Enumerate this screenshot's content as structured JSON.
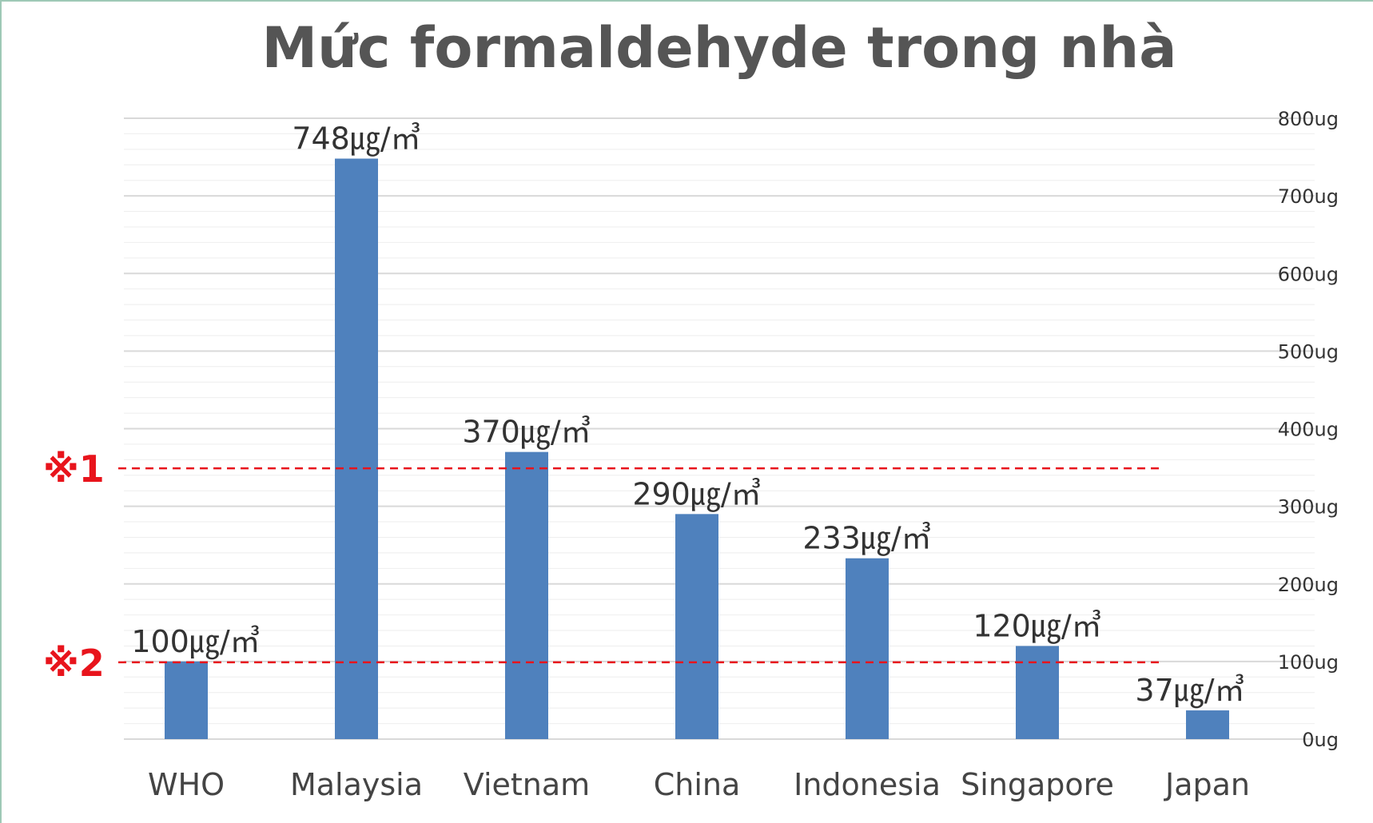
{
  "colors": {
    "bar": "#4f81bd",
    "reference": "#e8141c",
    "grid_major": "#d9d9d9",
    "grid_minor": "#eeeeee",
    "title": "#555555",
    "frame": "#9ec9b6"
  },
  "chart_data": {
    "type": "bar",
    "title": "Mức formaldehyde trong nhà",
    "categories": [
      "WHO",
      "Malaysia",
      "Vietnam",
      "China",
      "Indonesia",
      "Singapore",
      "Japan"
    ],
    "values": [
      100,
      748,
      370,
      290,
      233,
      120,
      37
    ],
    "data_labels": [
      "100㎍/㎥",
      "748㎍/㎥",
      "370㎍/㎥",
      "290㎍/㎥",
      "233㎍/㎥",
      "120㎍/㎥",
      "37㎍/㎥"
    ],
    "ylim": [
      0,
      800
    ],
    "y_ticks": [
      0,
      100,
      200,
      300,
      400,
      500,
      600,
      700,
      800
    ],
    "y_tick_labels": [
      "0ug",
      "100ug",
      "200ug",
      "300ug",
      "400ug",
      "500ug",
      "600ug",
      "700ug",
      "800ug"
    ],
    "y_axis_side": "right",
    "grid": true,
    "reference_lines": [
      {
        "label": "※1",
        "value": 350,
        "style": "dashed"
      },
      {
        "label": "※2",
        "value": 100,
        "style": "dashed"
      }
    ]
  }
}
